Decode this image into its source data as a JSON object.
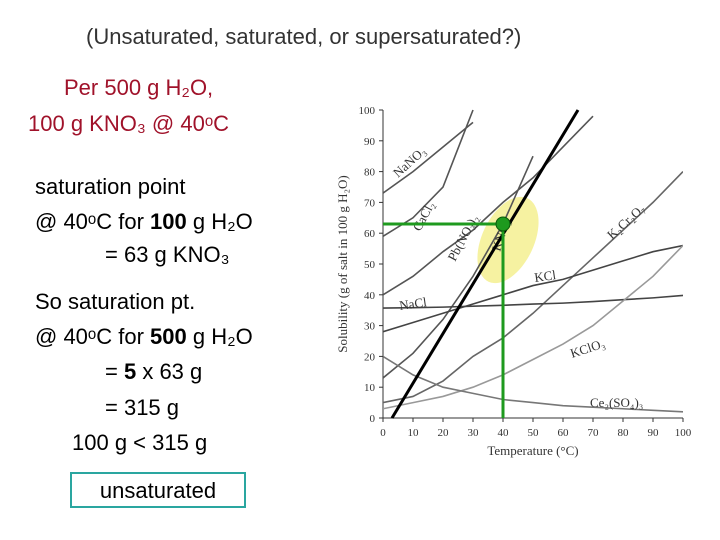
{
  "slide": {
    "question": "(Unsaturated, saturated, or supersaturated?)",
    "given": [
      "Per 500 g H₂O,",
      "100 g KNO₃ @ 40ᵒC"
    ],
    "step1": [
      [
        "saturation point"
      ],
      [
        "@ 40ᵒC for ",
        "100",
        " g H₂O"
      ],
      [
        "= 63 g KNO₃"
      ]
    ],
    "step2": [
      [
        "So saturation pt."
      ],
      [
        "@ 40ᵒC for ",
        "500",
        " g H₂O"
      ],
      [
        "= ",
        "5",
        " x 63 g"
      ],
      [
        "= 315 g"
      ],
      [
        "100 g < 315 g"
      ]
    ],
    "answer": "unsaturated"
  },
  "chart_data": {
    "type": "line",
    "x_label": "Temperature (°C)",
    "y_label": "Solubility (g of salt in 100 g H₂O)",
    "x": [
      0,
      10,
      20,
      30,
      40,
      50,
      60,
      70,
      80,
      90,
      100
    ],
    "xlim": [
      0,
      100
    ],
    "xticks": [
      0,
      10,
      20,
      30,
      40,
      50,
      60,
      70,
      80,
      90,
      100
    ],
    "ylim": [
      0,
      100
    ],
    "yticks": [
      0,
      10,
      20,
      30,
      40,
      50,
      60,
      70,
      80,
      90,
      100
    ],
    "series": [
      {
        "name": "NaNO₃",
        "color": "#555555",
        "values": [
          73,
          80,
          88,
          96,
          null,
          null,
          null,
          null,
          null,
          null,
          null
        ]
      },
      {
        "name": "CaCl₂",
        "color": "#555555",
        "values": [
          59,
          65,
          75,
          100,
          null,
          null,
          null,
          null,
          null,
          null,
          null
        ]
      },
      {
        "name": "Pb(NO₃)₂",
        "color": "#555555",
        "values": [
          40,
          46,
          54,
          61,
          70,
          78,
          88,
          98,
          null,
          null,
          null
        ]
      },
      {
        "name": "KNO₃",
        "color": "#555555",
        "values": [
          13,
          21,
          32,
          46,
          63,
          85,
          null,
          null,
          null,
          null,
          null
        ]
      },
      {
        "name": "K₂Cr₂O₇",
        "color": "#666666",
        "values": [
          5,
          7,
          12,
          20,
          26,
          34,
          43,
          52,
          61,
          70,
          80
        ]
      },
      {
        "name": "KCl",
        "color": "#444444",
        "values": [
          28,
          31,
          34,
          37,
          40,
          43,
          45,
          48,
          51,
          54,
          56
        ]
      },
      {
        "name": "NaCl",
        "color": "#444444",
        "values": [
          35.7,
          35.8,
          36,
          36.3,
          36.6,
          37,
          37.3,
          37.8,
          38.4,
          39,
          39.8
        ]
      },
      {
        "name": "KClO₃",
        "color": "#999999",
        "values": [
          3,
          5,
          7,
          10,
          14,
          19,
          24,
          30,
          38,
          46,
          56
        ]
      },
      {
        "name": "Ce₂(SO₄)₃",
        "color": "#777777",
        "values": [
          20,
          14,
          10,
          8,
          6,
          5,
          4,
          3.5,
          3,
          2.5,
          2
        ]
      },
      {
        "color": "#000000",
        "x": [
          3,
          65
        ],
        "values": [
          0,
          100
        ]
      }
    ],
    "point": {
      "x": 40,
      "y": 63,
      "color": "#1e9a1e"
    }
  }
}
